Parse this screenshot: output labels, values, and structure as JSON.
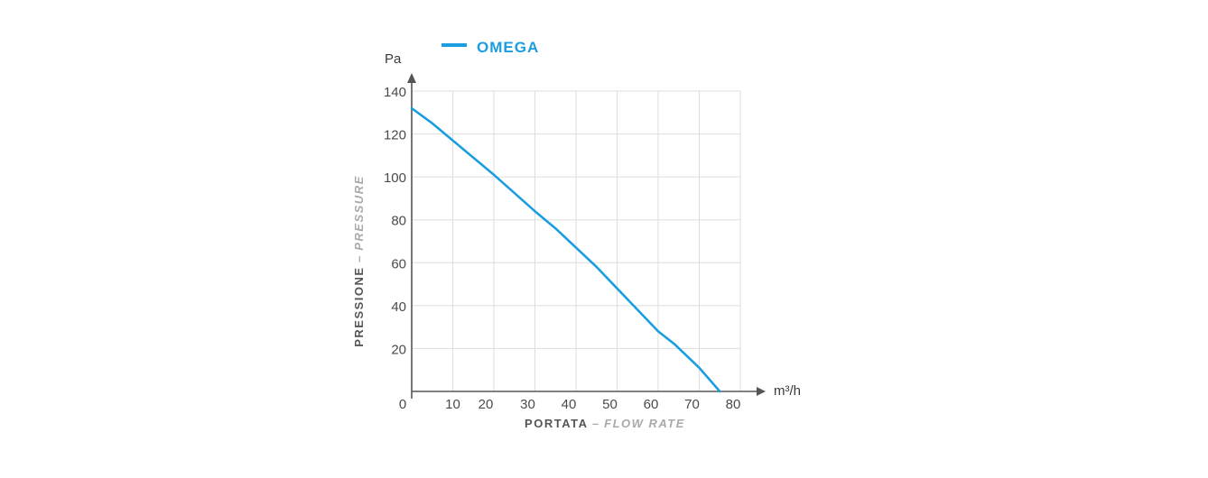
{
  "chart_data": {
    "type": "line",
    "series": [
      {
        "name": "OMEGA",
        "color": "#1a9ee0",
        "x": [
          0,
          5,
          10,
          20,
          30,
          35,
          40,
          45,
          50,
          55,
          60,
          64,
          70,
          75
        ],
        "y": [
          132,
          125,
          117,
          101,
          84,
          76,
          67,
          58,
          48,
          38,
          28,
          22,
          11,
          0
        ]
      }
    ],
    "x_unit": "m³/h",
    "y_unit": "Pa",
    "xlabel_main": "PORTATA",
    "xlabel_dash": "–",
    "xlabel_alt": "FLOW RATE",
    "ylabel_main": "PRESSIONE",
    "ylabel_dash": "–",
    "ylabel_alt": "PRESSURE",
    "xlim": [
      0,
      80
    ],
    "ylim": [
      0,
      140
    ],
    "x_ticks": [
      "0",
      "10",
      "20",
      "30",
      "40",
      "50",
      "60",
      "70",
      "80"
    ],
    "y_ticks": [
      "20",
      "40",
      "60",
      "80",
      "100",
      "120",
      "140"
    ],
    "grid": true,
    "legend_position": "top-left",
    "axis_color": "#555555",
    "grid_color": "#dddddd"
  }
}
